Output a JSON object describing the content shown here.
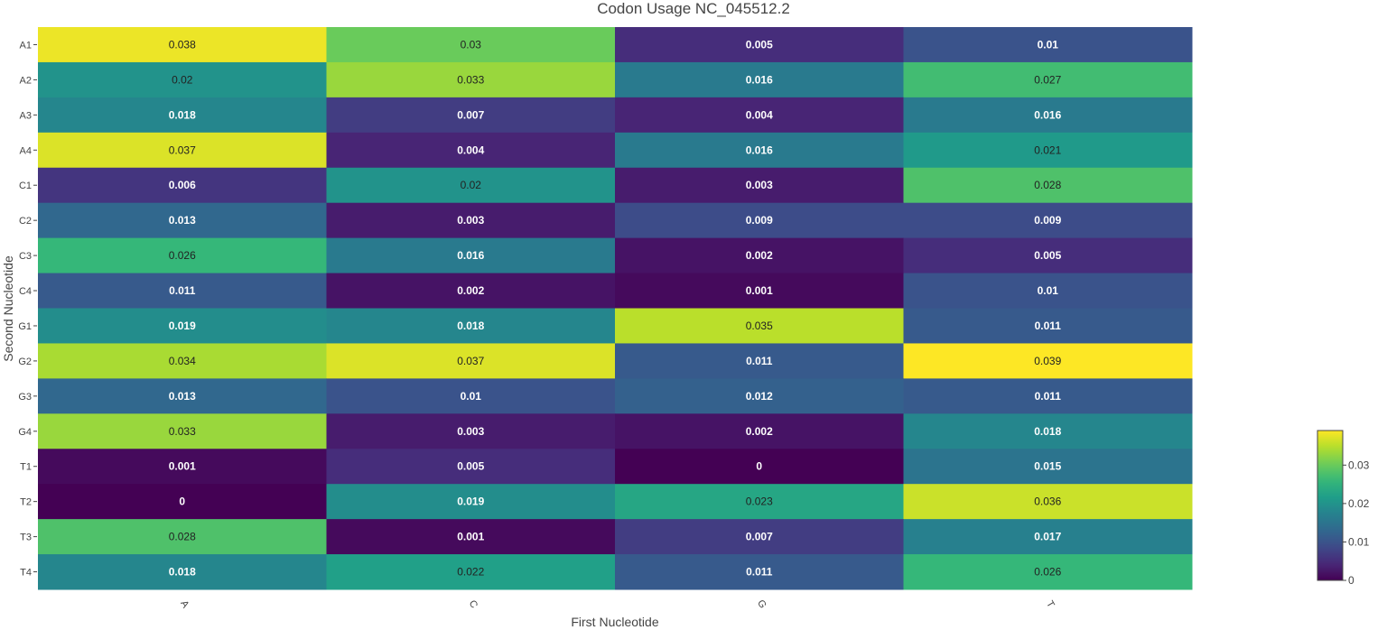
{
  "chart_data": {
    "type": "heatmap",
    "title": "Codon Usage NC_045512.2",
    "xlabel": "First Nucleotide",
    "ylabel": "Second Nucleotide",
    "x": [
      "A",
      "C",
      "G",
      "T"
    ],
    "y": [
      "A1",
      "A2",
      "A3",
      "A4",
      "C1",
      "C2",
      "C3",
      "C4",
      "G1",
      "G2",
      "G3",
      "G4",
      "T1",
      "T2",
      "T3",
      "T4"
    ],
    "z": [
      [
        0.038,
        0.03,
        0.005,
        0.01
      ],
      [
        0.02,
        0.033,
        0.016,
        0.027
      ],
      [
        0.018,
        0.007,
        0.004,
        0.016
      ],
      [
        0.037,
        0.004,
        0.016,
        0.021
      ],
      [
        0.006,
        0.02,
        0.003,
        0.028
      ],
      [
        0.013,
        0.003,
        0.009,
        0.009
      ],
      [
        0.026,
        0.016,
        0.002,
        0.005
      ],
      [
        0.011,
        0.002,
        0.001,
        0.01
      ],
      [
        0.019,
        0.018,
        0.035,
        0.011
      ],
      [
        0.034,
        0.037,
        0.011,
        0.039
      ],
      [
        0.013,
        0.01,
        0.012,
        0.011
      ],
      [
        0.033,
        0.003,
        0.002,
        0.018
      ],
      [
        0.001,
        0.005,
        0,
        0.015
      ],
      [
        0,
        0.019,
        0.023,
        0.036
      ],
      [
        0.028,
        0.001,
        0.007,
        0.017
      ],
      [
        0.018,
        0.022,
        0.011,
        0.026
      ]
    ],
    "zrange": [
      0,
      0.039
    ],
    "colorscale": "viridis",
    "colorbar": {
      "tickvals": [
        0,
        0.01,
        0.02,
        0.03
      ],
      "ticktext": [
        "0",
        "0.01",
        "0.02",
        "0.03"
      ],
      "position": "right"
    },
    "grid": false
  }
}
